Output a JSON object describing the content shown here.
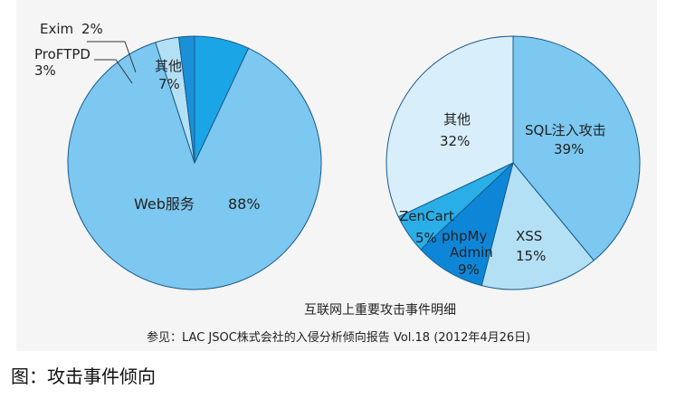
{
  "chart_data": [
    {
      "type": "pie",
      "title": "",
      "slices": [
        {
          "name": "Web服务",
          "value": 88,
          "value_label": "88%",
          "color": "#7cc8f0"
        },
        {
          "name": "ProFTPD",
          "value": 3,
          "value_label": "3%",
          "color": "#b4e0f6"
        },
        {
          "name": "Exim",
          "value": 2,
          "value_label": "2%",
          "color": "#1a90d8"
        },
        {
          "name": "其他",
          "value": 7,
          "value_label": "7%",
          "color": "#1aa5e6"
        }
      ]
    },
    {
      "type": "pie",
      "title": "",
      "slices": [
        {
          "name": "SQL注入攻击",
          "value": 39,
          "value_label": "39%",
          "color": "#7cc8f0"
        },
        {
          "name": "XSS",
          "value": 15,
          "value_label": "15%",
          "color": "#b4e0f6"
        },
        {
          "name": "phpMyAdmin",
          "value": 9,
          "value_label": "9%",
          "color": "#0e86d8"
        },
        {
          "name": "ZenCart",
          "value": 5,
          "value_label": "5%",
          "color": "#2aaee8"
        },
        {
          "name": "其他",
          "value": 32,
          "value_label": "32%",
          "color": "#d8eefa"
        }
      ]
    }
  ],
  "figure": {
    "subtitle": "互联网上重要攻击事件明细",
    "source": "参见：LAC JSOC株式会社的入侵分析倾向报告 Vol.18 (2012年4月26日)",
    "caption": "图：攻击事件倾向"
  },
  "labels": {
    "left": {
      "exim_name": "Exim",
      "exim_pct": "2%",
      "proftpd_name": "ProFTPD",
      "proftpd_pct": "3%",
      "other_name": "其他",
      "other_pct": "7%",
      "web_name": "Web服务",
      "web_pct": "88%"
    },
    "right": {
      "sql_name": "SQL注入攻击",
      "sql_pct": "39%",
      "xss_name": "XSS",
      "xss_pct": "15%",
      "php_line1": "phpMy",
      "php_line2": "Admin",
      "php_pct": "9%",
      "zen_name": "ZenCart",
      "zen_pct": "5%",
      "other_name": "其他",
      "other_pct": "32%"
    }
  }
}
